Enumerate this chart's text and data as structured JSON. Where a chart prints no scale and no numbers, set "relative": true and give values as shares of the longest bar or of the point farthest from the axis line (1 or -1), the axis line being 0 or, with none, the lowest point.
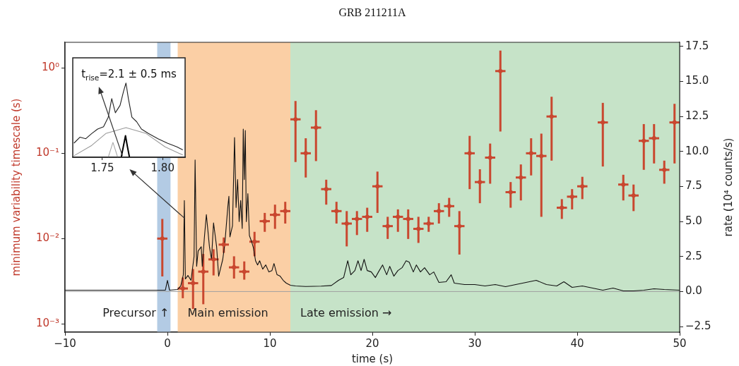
{
  "chart_data": [
    {
      "type": "scatter",
      "title": "GRB 211211A",
      "xlabel": "time (s)",
      "ylabel": "minimum variability timescale (s)",
      "y2label": "rate (10⁴ counts/s)",
      "log": "y",
      "xlim": [
        -10,
        50
      ],
      "xticks": [
        {
          "value": -10,
          "label": "−10"
        },
        0,
        10,
        20,
        30,
        40,
        50
      ],
      "ylim": [
        0.0008,
        2
      ],
      "yticks": [
        {
          "value": 0.001,
          "label": "10⁻³"
        },
        {
          "value": 0.01,
          "label": "10⁻²"
        },
        {
          "value": 0.1,
          "label": "10⁻¹"
        },
        {
          "value": 1,
          "label": "10⁰"
        }
      ],
      "y2lim": [
        -2.9,
        17.8
      ],
      "y2ticks": [
        {
          "value": -2.5,
          "label": "−2.5"
        },
        {
          "value": 0,
          "label": "0.0"
        },
        {
          "value": 2.5,
          "label": "2.5"
        },
        {
          "value": 5,
          "label": "5.0"
        },
        {
          "value": 7.5,
          "label": "7.5"
        },
        {
          "value": 10,
          "label": "10.0"
        },
        {
          "value": 12.5,
          "label": "12.5"
        },
        {
          "value": 15,
          "label": "15.0"
        },
        {
          "value": 17.5,
          "label": "17.5"
        }
      ],
      "bands": [
        {
          "axis": "x",
          "from": -1,
          "to": 0.3,
          "color": "#b3cbe4",
          "label": "Precursor ↑"
        },
        {
          "axis": "x",
          "from": 1,
          "to": 12,
          "color": "#fbcfa5",
          "label": "Main emission"
        },
        {
          "axis": "x",
          "from": 12,
          "to": 50,
          "color": "#c6e3c8",
          "label": "Late emission →"
        }
      ],
      "ref_lines": [
        {
          "axis": "y2",
          "value": 0,
          "color": "#a0a0a0"
        }
      ],
      "series": [
        {
          "color": "#c9472f",
          "x": [
            -0.5,
            1.5,
            2.5,
            3.5,
            4.5,
            5.5,
            6.5,
            7.5,
            8.5,
            9.5,
            10.5,
            11.5,
            12.5,
            13.5,
            14.5,
            15.5,
            16.5,
            17.5,
            18.5,
            19.5,
            20.5,
            21.5,
            22.5,
            23.5,
            24.5,
            25.5,
            26.5,
            27.5,
            28.5,
            29.5,
            30.5,
            31.5,
            32.5,
            33.5,
            34.5,
            35.5,
            36.5,
            37.5,
            38.5,
            39.5,
            40.5,
            42.5,
            44.5,
            45.5,
            46.5,
            47.5,
            48.5,
            49.5
          ],
          "values": [
            0.01,
            0.0026,
            0.003,
            0.0041,
            0.0057,
            0.0085,
            0.0046,
            0.0041,
            0.0092,
            0.016,
            0.019,
            0.021,
            0.25,
            0.1,
            0.2,
            0.038,
            0.021,
            0.015,
            0.017,
            0.018,
            0.041,
            0.014,
            0.018,
            0.017,
            0.013,
            0.015,
            0.021,
            0.024,
            0.014,
            0.1,
            0.046,
            0.089,
            0.92,
            0.035,
            0.052,
            0.1,
            0.093,
            0.27,
            0.023,
            0.031,
            0.041,
            0.23,
            0.043,
            0.032,
            0.14,
            0.15,
            0.064,
            0.23
          ],
          "errors": [
            [
              0.0036,
              0.017
            ],
            [
              0.002,
              0.0035
            ],
            [
              0.0015,
              0.0044
            ],
            [
              0.0017,
              0.0066
            ],
            [
              0.0037,
              0.0075
            ],
            [
              0.0068,
              0.0103
            ],
            [
              0.0034,
              0.0062
            ],
            [
              0.0033,
              0.0054
            ],
            [
              0.0062,
              0.012
            ],
            [
              0.012,
              0.02
            ],
            [
              0.013,
              0.025
            ],
            [
              0.015,
              0.027
            ],
            [
              0.079,
              0.41
            ],
            [
              0.052,
              0.15
            ],
            [
              0.081,
              0.32
            ],
            [
              0.025,
              0.049
            ],
            [
              0.015,
              0.027
            ],
            [
              0.0081,
              0.021
            ],
            [
              0.011,
              0.021
            ],
            [
              0.012,
              0.023
            ],
            [
              0.02,
              0.061
            ],
            [
              0.0099,
              0.018
            ],
            [
              0.012,
              0.022
            ],
            [
              0.0099,
              0.022
            ],
            [
              0.0089,
              0.018
            ],
            [
              0.012,
              0.018
            ],
            [
              0.015,
              0.026
            ],
            [
              0.018,
              0.03
            ],
            [
              0.0065,
              0.021
            ],
            [
              0.038,
              0.16
            ],
            [
              0.026,
              0.065
            ],
            [
              0.044,
              0.13
            ],
            [
              0.18,
              1.6
            ],
            [
              0.023,
              0.046
            ],
            [
              0.028,
              0.074
            ],
            [
              0.055,
              0.15
            ],
            [
              0.018,
              0.17
            ],
            [
              0.082,
              0.46
            ],
            [
              0.017,
              0.029
            ],
            [
              0.022,
              0.038
            ],
            [
              0.029,
              0.053
            ],
            [
              0.07,
              0.39
            ],
            [
              0.028,
              0.056
            ],
            [
              0.021,
              0.043
            ],
            [
              0.064,
              0.22
            ],
            [
              0.076,
              0.22
            ],
            [
              0.044,
              0.082
            ],
            [
              0.076,
              0.38
            ]
          ],
          "xerrors": [
            0.5,
            0.5,
            0.5,
            0.5,
            0.5,
            0.5,
            0.5,
            0.5,
            0.5,
            0.5,
            0.5,
            0.5,
            0.5,
            0.5,
            0.5,
            0.5,
            0.5,
            0.5,
            0.5,
            0.5,
            0.5,
            0.5,
            0.5,
            0.5,
            0.5,
            0.5,
            0.5,
            0.5,
            0.5,
            0.5,
            0.5,
            0.5,
            0.5,
            0.5,
            0.5,
            0.5,
            0.5,
            0.5,
            0.5,
            0.5,
            0.5,
            0.5,
            0.5,
            0.5,
            0.5,
            0.5,
            0.5,
            0.5
          ]
        },
        {
          "type": "line",
          "axis": "y2",
          "color": "#111111",
          "x": [
            -10,
            -6,
            -3,
            -0.2,
            0,
            0.2,
            1,
            1.3,
            1.55,
            1.65,
            1.75,
            2,
            2.3,
            2.6,
            2.7,
            2.85,
            3,
            3.3,
            3.4,
            3.6,
            3.8,
            4.1,
            4.3,
            4.5,
            4.8,
            5,
            5.4,
            5.6,
            5.9,
            6,
            6.1,
            6.35,
            6.55,
            6.7,
            6.85,
            7,
            7.15,
            7.3,
            7.4,
            7.5,
            7.6,
            7.7,
            7.85,
            8,
            8.2,
            8.4,
            8.6,
            8.8,
            9,
            9.3,
            9.6,
            9.9,
            10.2,
            10.4,
            10.7,
            11,
            11.3,
            11.6,
            12,
            12.5,
            13.5,
            15,
            16,
            16.7,
            17.2,
            17.6,
            17.9,
            18.3,
            18.6,
            18.9,
            19.2,
            19.5,
            19.9,
            20.3,
            20.6,
            21,
            21.4,
            21.7,
            22.1,
            22.5,
            22.9,
            23.3,
            23.6,
            24,
            24.3,
            24.7,
            25.1,
            25.6,
            26,
            26.5,
            27.2,
            27.7,
            28,
            29,
            30,
            31,
            32,
            33,
            34,
            35,
            36,
            37,
            38,
            38.7,
            39.5,
            40.5,
            41.5,
            42.5,
            43.5,
            44.5,
            45.5,
            46.5,
            47.5,
            48.5,
            50
          ],
          "values": [
            0.1,
            0.1,
            0.1,
            0.1,
            0.8,
            0.1,
            0.15,
            0.4,
            1.2,
            6.5,
            0.9,
            1.15,
            0.8,
            2.5,
            9.4,
            1.8,
            2.9,
            3.2,
            1.8,
            3.8,
            5.5,
            3.2,
            2.3,
            4.9,
            3.2,
            1.1,
            2.3,
            3.4,
            6.1,
            6.8,
            3.9,
            4.7,
            11,
            6,
            8,
            5,
            6.5,
            4.5,
            11.6,
            8,
            11.5,
            5,
            7,
            4,
            3.6,
            3.1,
            2.2,
            1.9,
            2.2,
            1.6,
            1.9,
            1.4,
            1.5,
            2,
            1.2,
            1.1,
            0.8,
            0.6,
            0.45,
            0.4,
            0.36,
            0.39,
            0.43,
            0.8,
            1,
            2.2,
            1.2,
            1.5,
            2.2,
            1.5,
            2.3,
            1.5,
            1.4,
            1,
            1.4,
            1.9,
            1.2,
            1.8,
            1.1,
            1.5,
            1.7,
            2.2,
            2.1,
            1.4,
            1.9,
            1.4,
            1.7,
            1.2,
            1.4,
            0.65,
            0.7,
            1.2,
            0.6,
            0.5,
            0.5,
            0.4,
            0.5,
            0.35,
            0.5,
            0.65,
            0.8,
            0.5,
            0.4,
            0.7,
            0.3,
            0.4,
            0.25,
            0.1,
            0.25,
            0.05,
            0.05,
            0.1,
            0.2,
            0.15,
            0.1
          ]
        }
      ]
    },
    {
      "type": "line",
      "relative": true,
      "tick_labels": "x",
      "xlim": [
        1.7255,
        1.8186
      ],
      "xticks": [
        1.75,
        {
          "value": 1.8,
          "label": "1.80"
        }
      ],
      "annotations": [
        "t$_{rise}$=2.1 ± 0.5 ms"
      ],
      "series": [
        {
          "color": "#999999",
          "x": [
            1.7265,
            1.7412,
            1.7529,
            1.7696,
            1.7863,
            1.802,
            1.8167
          ],
          "values": [
            0.02,
            0.16,
            0.32,
            0.4,
            0.32,
            0.14,
            0.03
          ]
        },
        {
          "color": "#aaaaaa",
          "x": [
            1.7549,
            1.7588,
            1.7608,
            1.7627
          ],
          "values": [
            0,
            0.2,
            0.1,
            0
          ]
        },
        {
          "color": "#222222",
          "x": [
            1.7265,
            1.7314,
            1.7363,
            1.7412,
            1.7461,
            1.751,
            1.7549,
            1.7578,
            1.7608,
            1.7647,
            1.7676,
            1.7696,
            1.7716,
            1.7745,
            1.7784,
            1.7824,
            1.7882,
            1.7961,
            1.8039,
            1.8118,
            1.8167
          ],
          "values": [
            0.19,
            0.27,
            0.25,
            0.32,
            0.38,
            0.41,
            0.54,
            0.79,
            0.6,
            0.7,
            0.89,
            1,
            0.79,
            0.54,
            0.48,
            0.38,
            0.32,
            0.25,
            0.19,
            0.14,
            0.1
          ]
        },
        {
          "color": "#000000",
          "x": [
            1.7657,
            1.7676,
            1.7692,
            1.7706,
            1.7725
          ],
          "values": [
            0,
            0.16,
            0.29,
            0.16,
            0
          ]
        }
      ]
    }
  ]
}
